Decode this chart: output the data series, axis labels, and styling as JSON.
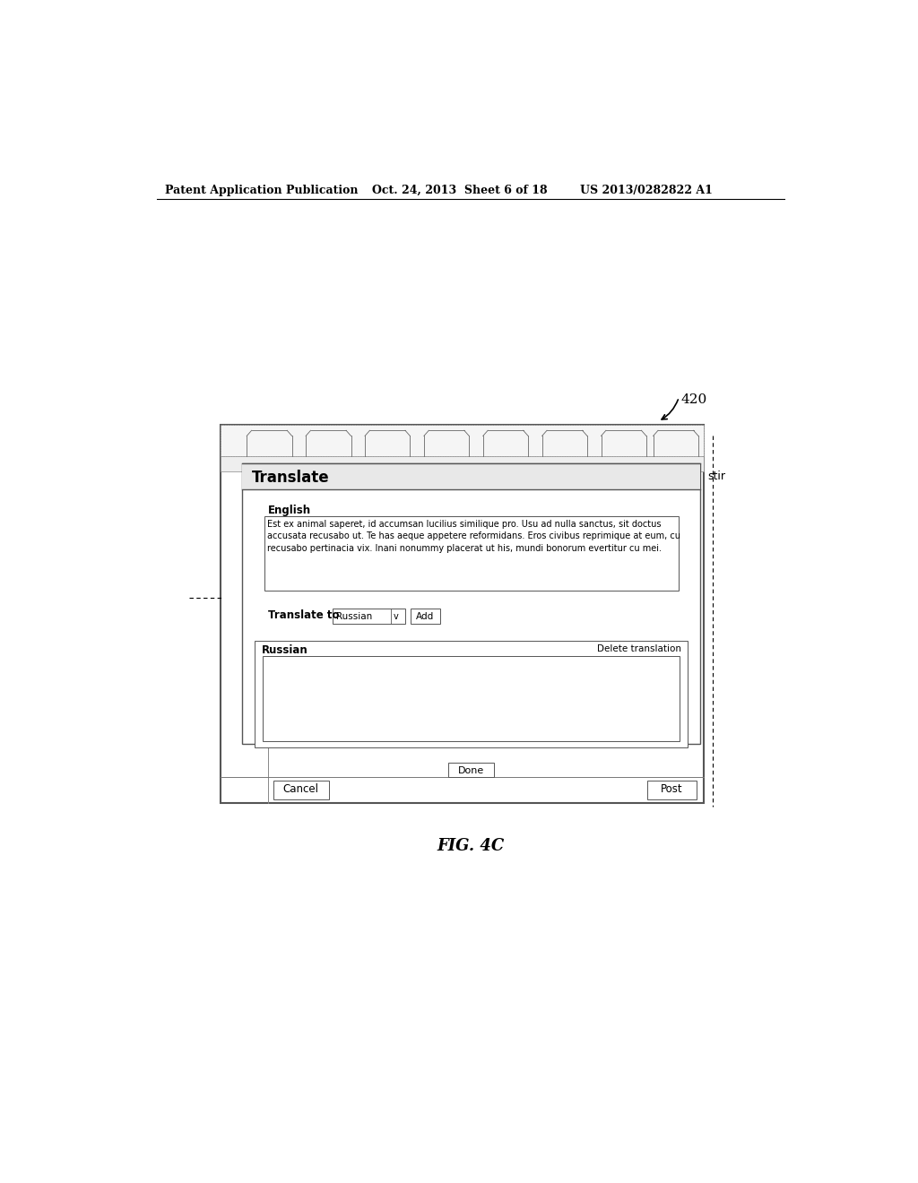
{
  "bg_color": "#ffffff",
  "header_text_left": "Patent Application Publication",
  "header_text_mid": "Oct. 24, 2013  Sheet 6 of 18",
  "header_text_right": "US 2013/0282822 A1",
  "fig_label": "FIG. 4C",
  "ref_label": "420",
  "title_text": "Translate",
  "english_label": "English",
  "english_body": "Est ex animal saperet, id accumsan lucilius similique pro. Usu ad nulla sanctus, sit doctus\naccusata recusabo ut. Te has aeque appetere reformidans. Eros civibus reprimique at eum, cu\nrecusabo pertinacia vix. Inani nonummy placerat ut his, mundi bonorum evertitur cu mei.",
  "translate_to_label": "Translate to",
  "dropdown_text": "Russian",
  "add_button_text": "Add",
  "russian_label": "Russian",
  "delete_translation_text": "Delete translation",
  "done_button_text": "Done",
  "cancel_button_text": "Cancel",
  "post_button_text": "Post",
  "stir_text": "stir"
}
